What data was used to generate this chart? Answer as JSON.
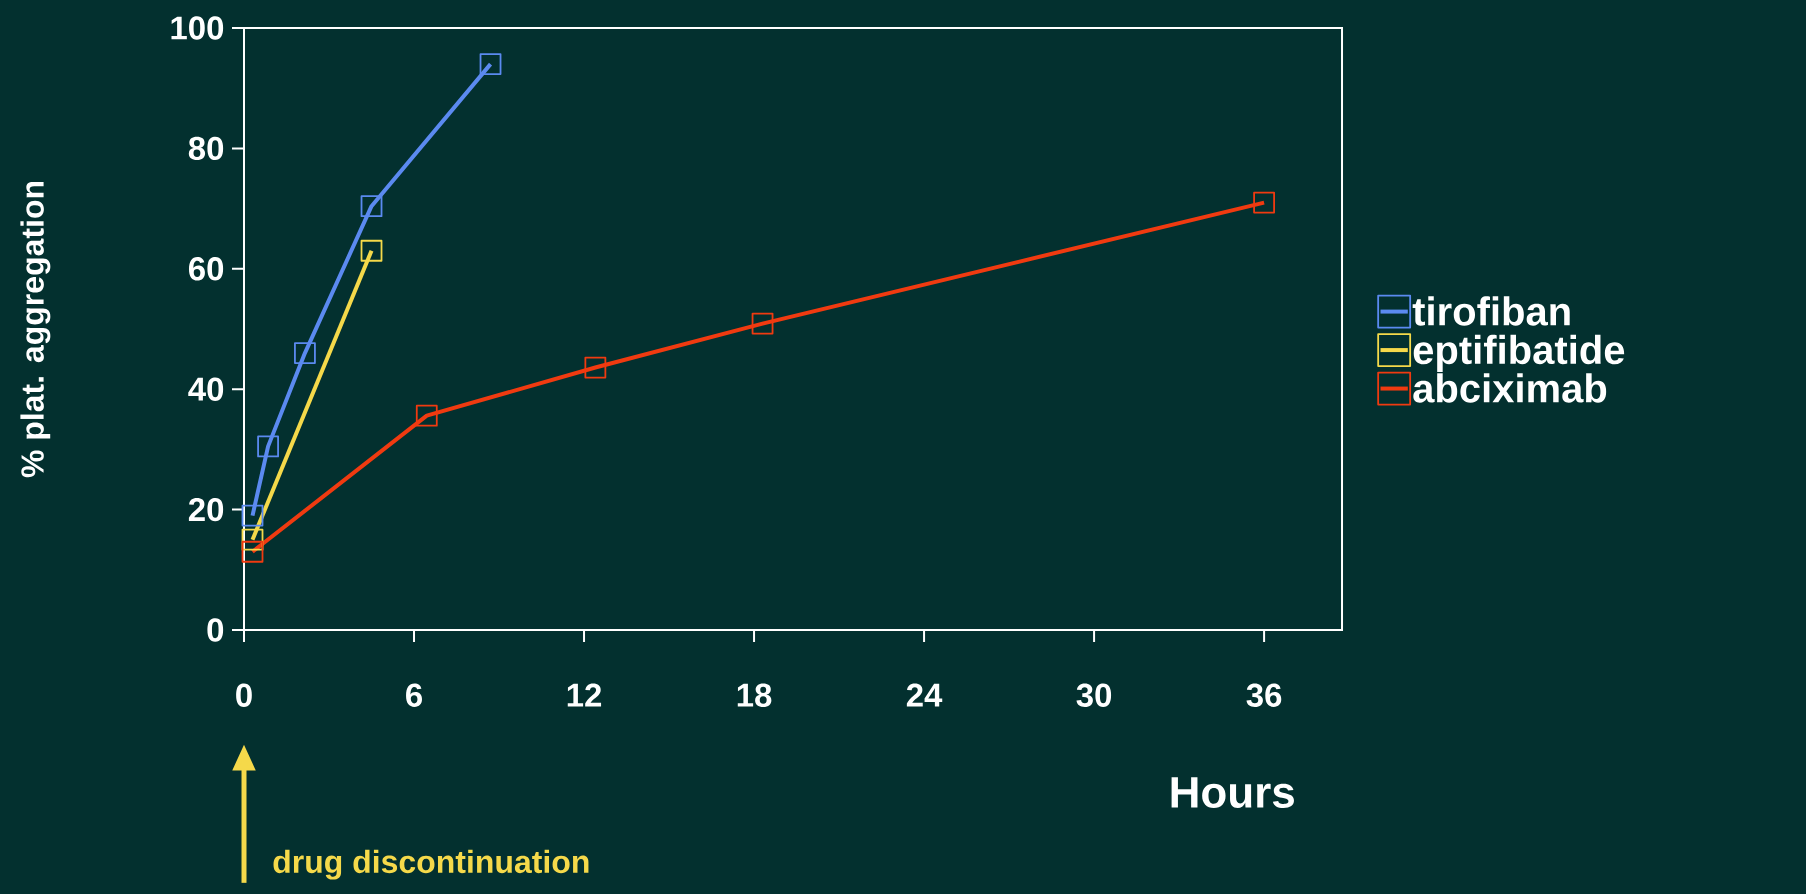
{
  "chart_data": {
    "type": "line",
    "xlabel": "Hours",
    "ylabel": "% plat. aggregation",
    "xlim": [
      0,
      38.75
    ],
    "ylim": [
      0,
      100
    ],
    "xticks": [
      0,
      6,
      12,
      18,
      24,
      30,
      36
    ],
    "yticks": [
      0,
      20,
      40,
      60,
      80,
      100
    ],
    "marker": "square",
    "line_style": "solid",
    "legend": "right",
    "grid": false,
    "annotations": [
      "drug discontinuation"
    ],
    "series": [
      {
        "name": "tirofiban",
        "color": "#5b8af0",
        "x": [
          0.3,
          0.85,
          2.15,
          4.5,
          8.7
        ],
        "values": [
          19,
          30.5,
          46,
          70.4,
          94
        ]
      },
      {
        "name": "eptifibatide",
        "color": "#f5d94a",
        "x": [
          0.3,
          4.5
        ],
        "values": [
          15,
          63
        ]
      },
      {
        "name": "abciximab",
        "color": "#f03a10",
        "x": [
          0.3,
          6.45,
          12.4,
          18.3,
          36
        ],
        "values": [
          13,
          35.6,
          43.6,
          50.9,
          71
        ]
      }
    ]
  }
}
